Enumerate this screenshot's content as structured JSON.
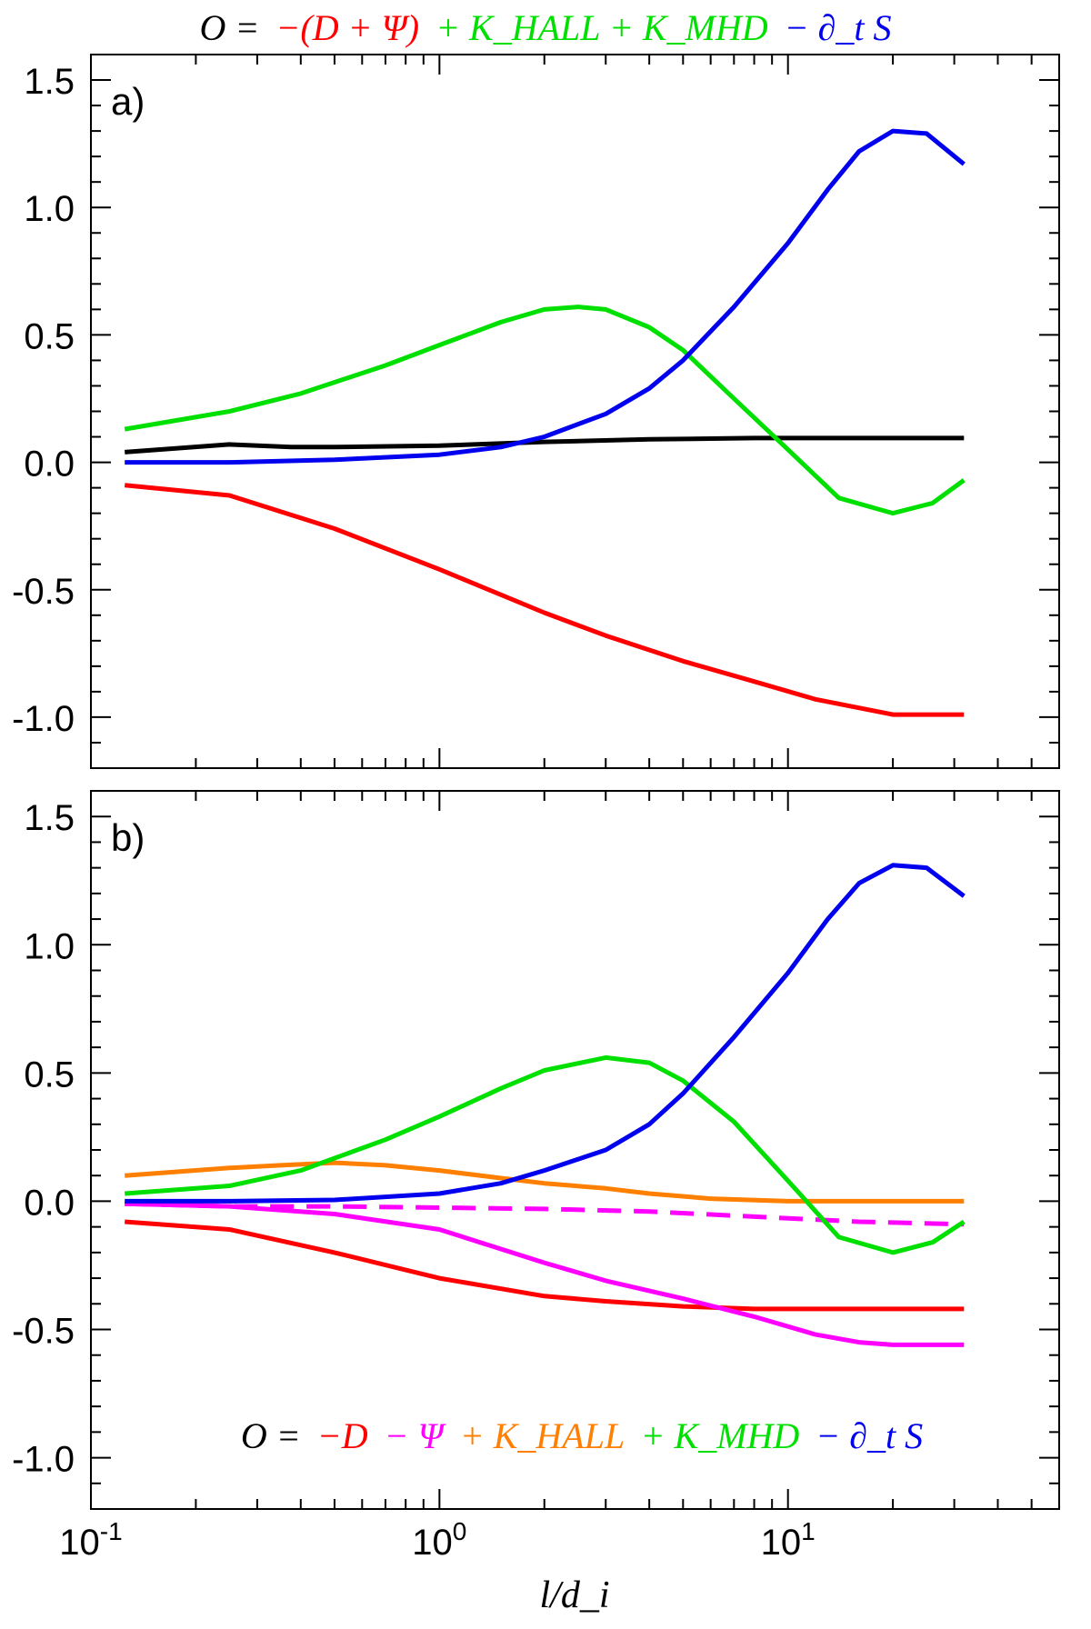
{
  "top_equation": {
    "lhs": "O =",
    "red": "−(D + Ψ)",
    "green": "+ K_HALL + K_MHD",
    "blue": "− ∂_t S"
  },
  "bottom_equation": {
    "lhs": "O =",
    "red": "−D",
    "magenta": "− Ψ",
    "orange": "+ K_HALL",
    "green": "+ K_MHD",
    "blue": "− ∂_t S"
  },
  "colors": {
    "black": "#000000",
    "red": "#ff0000",
    "green": "#00e000",
    "blue": "#0000ee",
    "orange": "#ff7f00",
    "magenta": "#ff00ff"
  },
  "chart_data": [
    {
      "type": "line",
      "panel_label": "a)",
      "xlabel": "",
      "ylabel": "",
      "xscale": "log",
      "xlim": [
        0.1,
        60
      ],
      "ylim": [
        -1.2,
        1.6
      ],
      "yticks": [
        "-1.0",
        "-0.5",
        "0.0",
        "0.5",
        "1.0",
        "1.5"
      ],
      "grid": false,
      "series": [
        {
          "color": "black",
          "style": "solid",
          "x": [
            0.125,
            0.25,
            0.375,
            0.5,
            1,
            2,
            4,
            8,
            16,
            32
          ],
          "y": [
            0.04,
            0.07,
            0.06,
            0.06,
            0.065,
            0.08,
            0.09,
            0.095,
            0.095,
            0.095
          ]
        },
        {
          "color": "red",
          "style": "solid",
          "x": [
            0.125,
            0.25,
            0.5,
            1,
            2,
            3,
            5,
            8,
            12,
            20,
            32
          ],
          "y": [
            -0.09,
            -0.13,
            -0.26,
            -0.42,
            -0.59,
            -0.68,
            -0.78,
            -0.86,
            -0.93,
            -0.99,
            -0.99
          ]
        },
        {
          "color": "green",
          "style": "solid",
          "x": [
            0.125,
            0.25,
            0.4,
            0.7,
            1,
            1.5,
            2,
            2.5,
            3,
            4,
            5,
            7,
            10,
            14,
            20,
            26,
            32
          ],
          "y": [
            0.13,
            0.2,
            0.27,
            0.38,
            0.46,
            0.55,
            0.6,
            0.61,
            0.6,
            0.53,
            0.44,
            0.25,
            0.05,
            -0.14,
            -0.2,
            -0.16,
            -0.07
          ]
        },
        {
          "color": "blue",
          "style": "solid",
          "x": [
            0.125,
            0.25,
            0.5,
            1,
            1.5,
            2,
            3,
            4,
            5,
            7,
            10,
            13,
            16,
            20,
            25,
            32
          ],
          "y": [
            0.0,
            0.0,
            0.01,
            0.03,
            0.06,
            0.1,
            0.19,
            0.29,
            0.4,
            0.61,
            0.86,
            1.07,
            1.22,
            1.3,
            1.29,
            1.17
          ]
        }
      ]
    },
    {
      "type": "line",
      "panel_label": "b)",
      "xlabel": "l/d_i",
      "ylabel": "",
      "xscale": "log",
      "xlim": [
        0.1,
        60
      ],
      "ylim": [
        -1.2,
        1.6
      ],
      "xticks": [
        {
          "base": "10",
          "exp": "-1",
          "value": 0.1
        },
        {
          "base": "10",
          "exp": "0",
          "value": 1
        },
        {
          "base": "10",
          "exp": "1",
          "value": 10
        }
      ],
      "yticks": [
        "-1.0",
        "-0.5",
        "0.0",
        "0.5",
        "1.0",
        "1.5"
      ],
      "grid": false,
      "series": [
        {
          "color": "red",
          "style": "solid",
          "x": [
            0.125,
            0.25,
            0.5,
            1,
            2,
            3,
            5,
            8,
            12,
            20,
            32
          ],
          "y": [
            -0.08,
            -0.11,
            -0.2,
            -0.3,
            -0.37,
            -0.39,
            -0.41,
            -0.42,
            -0.42,
            -0.42,
            -0.42
          ]
        },
        {
          "color": "magenta",
          "style": "solid",
          "x": [
            0.125,
            0.25,
            0.5,
            1,
            2,
            3,
            5,
            8,
            12,
            16,
            20,
            32
          ],
          "y": [
            -0.01,
            -0.02,
            -0.05,
            -0.11,
            -0.24,
            -0.31,
            -0.38,
            -0.45,
            -0.52,
            -0.55,
            -0.56,
            -0.56
          ]
        },
        {
          "color": "magenta",
          "style": "dashed",
          "x": [
            0.125,
            0.25,
            0.5,
            1,
            2,
            4,
            8,
            16,
            32
          ],
          "y": [
            -0.01,
            -0.02,
            -0.02,
            -0.025,
            -0.03,
            -0.04,
            -0.06,
            -0.08,
            -0.09
          ]
        },
        {
          "color": "orange",
          "style": "solid",
          "x": [
            0.125,
            0.25,
            0.35,
            0.5,
            0.7,
            1,
            1.5,
            2,
            3,
            4,
            6,
            10,
            16,
            32
          ],
          "y": [
            0.1,
            0.13,
            0.14,
            0.15,
            0.14,
            0.12,
            0.09,
            0.07,
            0.05,
            0.03,
            0.01,
            0.0,
            0.0,
            0.0
          ]
        },
        {
          "color": "green",
          "style": "solid",
          "x": [
            0.125,
            0.25,
            0.4,
            0.7,
            1,
            1.5,
            2,
            3,
            4,
            5,
            7,
            10,
            14,
            20,
            26,
            32
          ],
          "y": [
            0.03,
            0.06,
            0.12,
            0.24,
            0.33,
            0.44,
            0.51,
            0.56,
            0.54,
            0.47,
            0.31,
            0.08,
            -0.14,
            -0.2,
            -0.16,
            -0.08
          ]
        },
        {
          "color": "blue",
          "style": "solid",
          "x": [
            0.125,
            0.25,
            0.5,
            1,
            1.5,
            2,
            3,
            4,
            5,
            7,
            10,
            13,
            16,
            20,
            25,
            32
          ],
          "y": [
            0.0,
            0.0,
            0.005,
            0.03,
            0.07,
            0.12,
            0.2,
            0.3,
            0.42,
            0.64,
            0.89,
            1.1,
            1.24,
            1.31,
            1.3,
            1.19
          ]
        }
      ]
    }
  ]
}
